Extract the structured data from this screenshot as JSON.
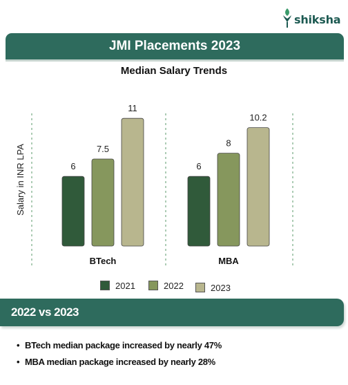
{
  "brand": {
    "name": "shiksha",
    "color": "#1d5a52",
    "icon": "shiksha-leaf-icon"
  },
  "header": {
    "title": "JMI Placements 2023"
  },
  "chart_data": {
    "type": "bar",
    "title": "Median Salary Trends",
    "xlabel": "",
    "ylabel": "Salary in INR LPA",
    "categories": [
      "BTech",
      "MBA"
    ],
    "series": [
      {
        "name": "2021",
        "values": [
          6,
          6
        ],
        "color": "#305a3a"
      },
      {
        "name": "2022",
        "values": [
          7.5,
          8
        ],
        "color": "#86975d"
      },
      {
        "name": "2023",
        "values": [
          11,
          10.2
        ],
        "color": "#b8b68e"
      }
    ],
    "value_labels": [
      [
        "6",
        "7.5",
        "11"
      ],
      [
        "6",
        "8",
        "10.2"
      ]
    ],
    "ylim": [
      0,
      12
    ],
    "grid": false,
    "legend": "bottom"
  },
  "comparison": {
    "title": "2022 vs 2023",
    "points": [
      "BTech median package increased by nearly 47%",
      "MBA median package increased by nearly 28%"
    ]
  }
}
